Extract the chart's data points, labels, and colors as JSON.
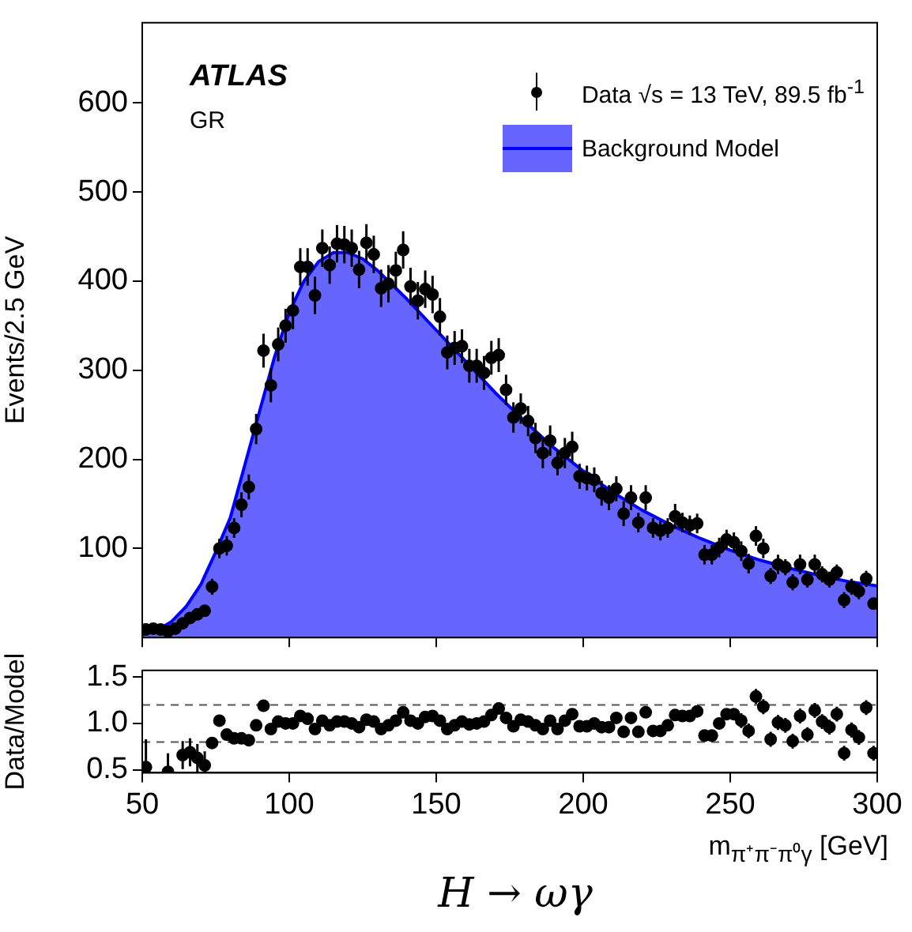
{
  "chart_data": [
    {
      "type": "scatter",
      "ylabel": "Events/2.5 GeV",
      "xlim": [
        50,
        300
      ],
      "xticks": [
        50,
        100,
        150,
        200,
        250,
        300
      ],
      "ylim": [
        0,
        690
      ],
      "yticks": [
        100,
        200,
        300,
        400,
        500,
        600
      ],
      "tick_labels": "y",
      "legend": "top right",
      "grid": false,
      "annotations": [
        "ATLAS",
        "GR"
      ],
      "series": [
        {
          "name": "Data √s =  13 TeV, 89.5 fb$^{-1}$",
          "marker": "circle",
          "color": "#000000",
          "x": [
            51.25,
            53.75,
            56.25,
            58.75,
            61.25,
            63.75,
            66.25,
            68.75,
            71.25,
            73.75,
            76.25,
            78.75,
            81.25,
            83.75,
            86.25,
            88.75,
            91.25,
            93.75,
            96.25,
            98.75,
            101.25,
            103.75,
            106.25,
            108.75,
            111.25,
            113.75,
            116.25,
            118.75,
            121.25,
            123.75,
            126.25,
            128.75,
            131.25,
            133.75,
            136.25,
            138.75,
            141.25,
            143.75,
            146.25,
            148.75,
            151.25,
            153.75,
            156.25,
            158.75,
            161.25,
            163.75,
            166.25,
            168.75,
            171.25,
            173.75,
            176.25,
            178.75,
            181.25,
            183.75,
            186.25,
            188.75,
            191.25,
            193.75,
            196.25,
            198.75,
            201.25,
            203.75,
            206.25,
            208.75,
            211.25,
            213.75,
            216.25,
            218.75,
            221.25,
            223.75,
            226.25,
            228.75,
            231.25,
            233.75,
            236.25,
            238.75,
            241.25,
            243.75,
            246.25,
            248.75,
            251.25,
            253.75,
            256.25,
            258.75,
            261.25,
            263.75,
            266.25,
            268.75,
            271.25,
            273.75,
            276.25,
            278.75,
            281.25,
            283.75,
            286.25,
            288.75,
            291.25,
            293.75,
            296.25,
            298.75
          ],
          "values": [
            9,
            10,
            9,
            7,
            10,
            16,
            22,
            26,
            30,
            57,
            100,
            103,
            123,
            149,
            169,
            234,
            322,
            283,
            329,
            350,
            367,
            416,
            416,
            384,
            437,
            418,
            442,
            441,
            437,
            413,
            443,
            430,
            392,
            397,
            412,
            435,
            394,
            378,
            391,
            385,
            360,
            320,
            325,
            327,
            305,
            305,
            297,
            314,
            317,
            278,
            247,
            257,
            243,
            224,
            207,
            221,
            196,
            207,
            214,
            181,
            179,
            177,
            162,
            157,
            167,
            139,
            157,
            129,
            157,
            123,
            120,
            123,
            136,
            129,
            126,
            128,
            93,
            93,
            101,
            110,
            107,
            97,
            83,
            114,
            100,
            69,
            82,
            79,
            62,
            82,
            65,
            82,
            71,
            65,
            73,
            42,
            57,
            52,
            66,
            38
          ],
          "errors": [
            4,
            4,
            4,
            4,
            4,
            6,
            6,
            6,
            6,
            9,
            11,
            11,
            11,
            14,
            14,
            17,
            19,
            19,
            19,
            19,
            21,
            21,
            21,
            21,
            21,
            21,
            21,
            21,
            21,
            21,
            21,
            21,
            21,
            21,
            21,
            21,
            21,
            21,
            21,
            21,
            21,
            19,
            19,
            19,
            19,
            19,
            19,
            19,
            19,
            17,
            17,
            17,
            17,
            17,
            17,
            17,
            14,
            17,
            17,
            14,
            14,
            14,
            14,
            14,
            14,
            14,
            14,
            11,
            14,
            11,
            11,
            11,
            14,
            11,
            11,
            11,
            11,
            11,
            11,
            11,
            11,
            11,
            11,
            11,
            11,
            9,
            11,
            9,
            9,
            11,
            9,
            11,
            9,
            9,
            9,
            9,
            9,
            9,
            9,
            6
          ]
        },
        {
          "name": "Background Model",
          "type": "area",
          "color": "#0000ff",
          "x": [
            50,
            55,
            60,
            65,
            70,
            75,
            80,
            85,
            90,
            95,
            100,
            105,
            110,
            115,
            120,
            125,
            130,
            140,
            150,
            160,
            170,
            180,
            190,
            200,
            210,
            220,
            230,
            240,
            250,
            260,
            270,
            280,
            290,
            300
          ],
          "values": [
            3,
            8,
            18,
            35,
            60,
            96,
            135,
            195,
            255,
            315,
            365,
            400,
            422,
            432,
            432,
            425,
            412,
            380,
            345,
            310,
            275,
            243,
            213,
            187,
            163,
            143,
            126,
            111,
            98,
            87,
            78,
            70,
            63,
            58
          ]
        }
      ]
    },
    {
      "type": "scatter",
      "ylabel": "Data/Model",
      "xlabel": "m$_{π⁺π⁻π⁰γ}$ [GeV]",
      "xlim": [
        50,
        300
      ],
      "xticks": [
        50,
        100,
        150,
        200,
        250,
        300
      ],
      "ylim": [
        0.47,
        1.57
      ],
      "yticks": [
        {
          "value": 0.5,
          "label": "0.5"
        },
        {
          "value": 1,
          "label": "1.0"
        },
        {
          "value": 1.5,
          "label": "1.5"
        }
      ],
      "marker": "circle",
      "grid": false,
      "ref_lines": [
        {
          "axis": "y",
          "value": 1.2,
          "color": "#555555",
          "line_style": "dashed"
        },
        {
          "axis": "y",
          "value": 0.8,
          "color": "#555555",
          "line_style": "dashed"
        }
      ],
      "annotations": [
        "H → ωγ"
      ],
      "series": [
        {
          "color": "#000000",
          "x": [
            51.25,
            53.75,
            56.25,
            58.75,
            61.25,
            63.75,
            66.25,
            68.75,
            71.25,
            73.75,
            76.25,
            78.75,
            81.25,
            83.75,
            86.25,
            88.75,
            91.25,
            93.75,
            96.25,
            98.75,
            101.25,
            103.75,
            106.25,
            108.75,
            111.25,
            113.75,
            116.25,
            118.75,
            121.25,
            123.75,
            126.25,
            128.75,
            131.25,
            133.75,
            136.25,
            138.75,
            141.25,
            143.75,
            146.25,
            148.75,
            151.25,
            153.75,
            156.25,
            158.75,
            161.25,
            163.75,
            166.25,
            168.75,
            171.25,
            173.75,
            176.25,
            178.75,
            181.25,
            183.75,
            186.25,
            188.75,
            191.25,
            193.75,
            196.25,
            198.75,
            201.25,
            203.75,
            206.25,
            208.75,
            211.25,
            213.75,
            216.25,
            218.75,
            221.25,
            223.75,
            226.25,
            228.75,
            231.25,
            233.75,
            236.25,
            238.75,
            241.25,
            243.75,
            246.25,
            248.75,
            251.25,
            253.75,
            256.25,
            258.75,
            261.25,
            263.75,
            266.25,
            268.75,
            271.25,
            273.75,
            276.25,
            278.75,
            281.25,
            283.75,
            286.25,
            288.75,
            291.25,
            293.75,
            296.25,
            298.75
          ],
          "values": [
            0.53,
            null,
            null,
            0.48,
            null,
            0.66,
            0.69,
            0.63,
            0.55,
            0.79,
            1.03,
            0.88,
            0.84,
            0.84,
            0.82,
            0.98,
            1.19,
            0.94,
            1.02,
            1.0,
            1.0,
            1.08,
            1.05,
            0.94,
            1.03,
            0.98,
            1.02,
            1.02,
            1.0,
            0.96,
            1.04,
            1.02,
            0.94,
            0.98,
            1.03,
            1.12,
            1.03,
            1.0,
            1.07,
            1.08,
            1.03,
            0.94,
            0.98,
            1.02,
            0.99,
            1.0,
            1.02,
            1.09,
            1.16,
            1.06,
            0.97,
            1.04,
            1.02,
            0.98,
            0.94,
            1.03,
            0.94,
            1.03,
            1.1,
            0.97,
            0.97,
            1.0,
            0.96,
            0.96,
            1.06,
            0.91,
            1.06,
            0.91,
            1.12,
            0.92,
            0.92,
            0.98,
            1.09,
            1.08,
            1.08,
            1.13,
            0.87,
            0.87,
            1.0,
            1.1,
            1.1,
            1.03,
            0.92,
            1.29,
            1.18,
            0.83,
            1.01,
            0.98,
            0.81,
            1.08,
            0.88,
            1.14,
            1.02,
            0.96,
            1.1,
            0.68,
            0.93,
            0.85,
            1.17,
            0.68
          ],
          "errors": [
            0.3,
            null,
            null,
            0.2,
            null,
            0.15,
            0.15,
            0.15,
            0.15,
            0.06,
            0.06,
            0.06,
            0.06,
            0.06,
            0.06,
            0.06,
            0.06,
            0.06,
            0.06,
            0.06,
            0.06,
            0.05,
            0.05,
            0.05,
            0.05,
            0.05,
            0.05,
            0.05,
            0.05,
            0.05,
            0.05,
            0.05,
            0.05,
            0.05,
            0.05,
            0.05,
            0.05,
            0.05,
            0.05,
            0.05,
            0.05,
            0.05,
            0.05,
            0.05,
            0.05,
            0.05,
            0.05,
            0.05,
            0.05,
            0.05,
            0.05,
            0.05,
            0.05,
            0.05,
            0.05,
            0.05,
            0.05,
            0.05,
            0.05,
            0.05,
            0.05,
            0.06,
            0.06,
            0.06,
            0.06,
            0.06,
            0.06,
            0.06,
            0.06,
            0.06,
            0.06,
            0.06,
            0.06,
            0.06,
            0.06,
            0.06,
            0.06,
            0.06,
            0.06,
            0.06,
            0.06,
            0.08,
            0.08,
            0.08,
            0.08,
            0.08,
            0.08,
            0.08,
            0.08,
            0.08,
            0.08,
            0.08,
            0.08,
            0.08,
            0.08,
            0.08,
            0.08,
            0.08,
            0.08,
            0.08
          ]
        }
      ]
    }
  ]
}
